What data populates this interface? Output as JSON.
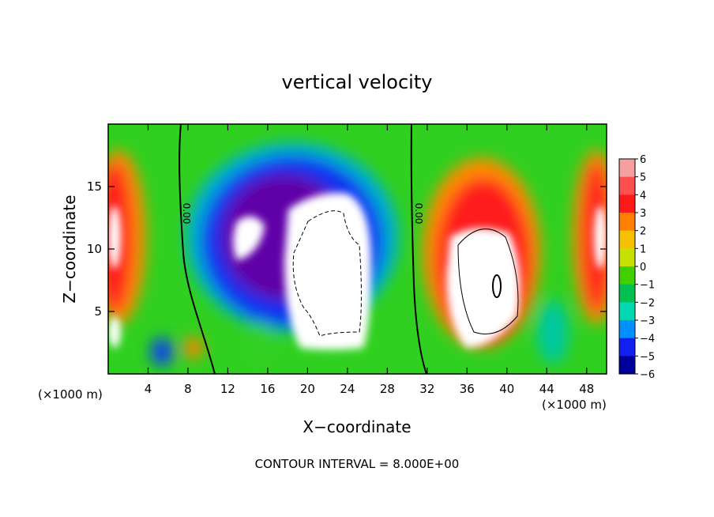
{
  "chart_data": {
    "type": "heatmap",
    "title": "vertical velocity",
    "xlabel": "X−coordinate",
    "ylabel": "Z−coordinate",
    "x_unit": "(×1000 m)",
    "xlim": [
      0,
      50
    ],
    "ylim": [
      0,
      20
    ],
    "x_ticks": [
      4,
      8,
      12,
      16,
      20,
      24,
      28,
      32,
      36,
      40,
      44,
      48
    ],
    "y_ticks": [
      5,
      10,
      15
    ],
    "x_tick_labels": [
      "4",
      "8",
      "12",
      "16",
      "20",
      "24",
      "28",
      "32",
      "36",
      "40",
      "44",
      "48"
    ],
    "y_tick_labels": [
      "5",
      "10",
      "15"
    ],
    "contour_label": "0.00",
    "contour_interval_text": "CONTOUR INTERVAL = 8.000E+00",
    "colorbar": {
      "labels": [
        "6",
        "5",
        "4",
        "3",
        "2",
        "1",
        "0",
        "−1",
        "−2",
        "−3",
        "−4",
        "−5",
        "−6"
      ],
      "values": [
        6,
        5,
        4,
        3,
        2,
        1,
        0,
        -1,
        -2,
        -3,
        -4,
        -5,
        -6
      ],
      "colors": [
        "#f5a0a0",
        "#ff5050",
        "#ff1a1a",
        "#ff8000",
        "#f5c000",
        "#c8e000",
        "#40d000",
        "#00c050",
        "#00d8b0",
        "#0090ff",
        "#1020f0",
        "#000098",
        "#7000a0"
      ]
    },
    "features": [
      {
        "name": "updraft-left-edge",
        "x": 1.0,
        "z": 11,
        "w": "strong positive"
      },
      {
        "name": "downdraft-core",
        "x": 18,
        "z": 12,
        "w": "strong negative"
      },
      {
        "name": "updraft-core",
        "x": 22.5,
        "z": 8,
        "w": "strong positive (saturated)"
      },
      {
        "name": "updraft-right",
        "x": 38,
        "z": 9,
        "w": "strong positive"
      },
      {
        "name": "updraft-right-edge",
        "x": 49,
        "z": 11,
        "w": "strong positive"
      }
    ]
  }
}
